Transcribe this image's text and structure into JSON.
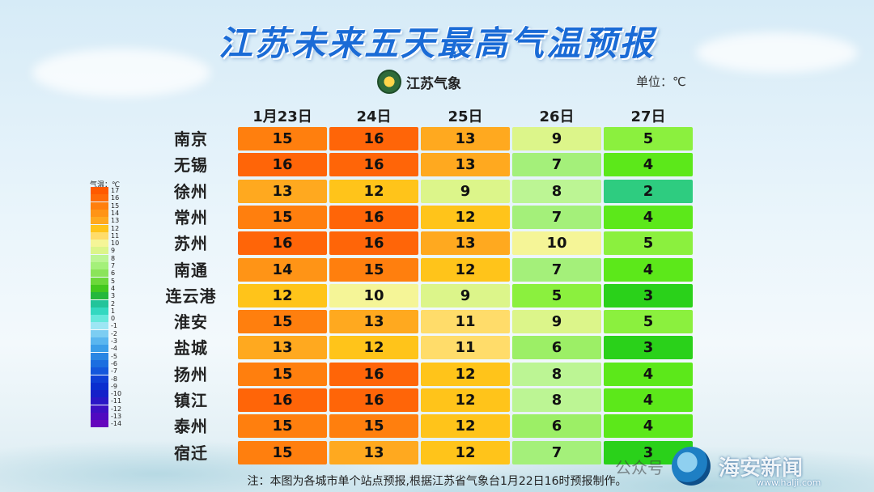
{
  "title": "江苏未来五天最高气温预报",
  "logo_text": "江苏气象",
  "unit": "单位：℃",
  "note": "注：本图为各城市单个站点预报,根据江苏省气象台1月22日16时预报制作。",
  "watermark": {
    "wechat": "公众号",
    "name": "海安新闻",
    "url": "www.halji.com"
  },
  "colors": {
    "2": "#2ecc80",
    "3": "#2ad11a",
    "4": "#5ce81a",
    "5": "#8bf03e",
    "6": "#9cef66",
    "7": "#a4f07a",
    "8": "#bcf594",
    "9": "#dcf58a",
    "10": "#f5f597",
    "11": "#ffdc6a",
    "12": "#ffc41a",
    "13": "#ffa91f",
    "14": "#ff9416",
    "15": "#ff7f0e",
    "16": "#ff6508"
  },
  "chart_data": {
    "type": "table",
    "columns": [
      "1月23日",
      "24日",
      "25日",
      "26日",
      "27日"
    ],
    "rows": [
      {
        "city": "南京",
        "values": [
          15,
          16,
          13,
          9,
          5
        ]
      },
      {
        "city": "无锡",
        "values": [
          16,
          16,
          13,
          7,
          4
        ]
      },
      {
        "city": "徐州",
        "values": [
          13,
          12,
          9,
          8,
          2
        ]
      },
      {
        "city": "常州",
        "values": [
          15,
          16,
          12,
          7,
          4
        ]
      },
      {
        "city": "苏州",
        "values": [
          16,
          16,
          13,
          10,
          5
        ]
      },
      {
        "city": "南通",
        "values": [
          14,
          15,
          12,
          7,
          4
        ]
      },
      {
        "city": "连云港",
        "values": [
          12,
          10,
          9,
          5,
          3
        ]
      },
      {
        "city": "淮安",
        "values": [
          15,
          13,
          11,
          9,
          5
        ]
      },
      {
        "city": "盐城",
        "values": [
          13,
          12,
          11,
          6,
          3
        ]
      },
      {
        "city": "扬州",
        "values": [
          15,
          16,
          12,
          8,
          4
        ]
      },
      {
        "city": "镇江",
        "values": [
          16,
          16,
          12,
          8,
          4
        ]
      },
      {
        "city": "泰州",
        "values": [
          15,
          15,
          12,
          6,
          4
        ]
      },
      {
        "city": "宿迁",
        "values": [
          15,
          13,
          12,
          7,
          3
        ]
      }
    ],
    "legend": {
      "title": "气温：℃",
      "items": [
        {
          "label": "17",
          "color": "#ff5a00"
        },
        {
          "label": "16",
          "color": "#ff6b08"
        },
        {
          "label": "15",
          "color": "#ff7f0e"
        },
        {
          "label": "14",
          "color": "#ff9416"
        },
        {
          "label": "13",
          "color": "#ffa91f"
        },
        {
          "label": "12",
          "color": "#ffc41a"
        },
        {
          "label": "11",
          "color": "#ffdc6a"
        },
        {
          "label": "10",
          "color": "#f5f597"
        },
        {
          "label": "9",
          "color": "#dcf58a"
        },
        {
          "label": "8",
          "color": "#bcf594"
        },
        {
          "label": "7",
          "color": "#a4f07a"
        },
        {
          "label": "6",
          "color": "#8be45a"
        },
        {
          "label": "5",
          "color": "#6cd83a"
        },
        {
          "label": "4",
          "color": "#43c81e"
        },
        {
          "label": "3",
          "color": "#25b83c"
        },
        {
          "label": "2",
          "color": "#22c49a"
        },
        {
          "label": "1",
          "color": "#33d8c0"
        },
        {
          "label": "0",
          "color": "#66e8dc"
        },
        {
          "label": "-1",
          "color": "#9de6f4"
        },
        {
          "label": "-2",
          "color": "#7ccdf2"
        },
        {
          "label": "-3",
          "color": "#5ab6ef"
        },
        {
          "label": "-4",
          "color": "#3b9ee9"
        },
        {
          "label": "-5",
          "color": "#2a86e3"
        },
        {
          "label": "-6",
          "color": "#1c6ee0"
        },
        {
          "label": "-7",
          "color": "#1457dc"
        },
        {
          "label": "-8",
          "color": "#0e3fd6"
        },
        {
          "label": "-9",
          "color": "#0a2ecf"
        },
        {
          "label": "-10",
          "color": "#1520c9"
        },
        {
          "label": "-11",
          "color": "#2a17c6"
        },
        {
          "label": "-12",
          "color": "#3d10c3"
        },
        {
          "label": "-13",
          "color": "#500ac0"
        },
        {
          "label": "-14",
          "color": "#6606bd"
        }
      ]
    }
  }
}
